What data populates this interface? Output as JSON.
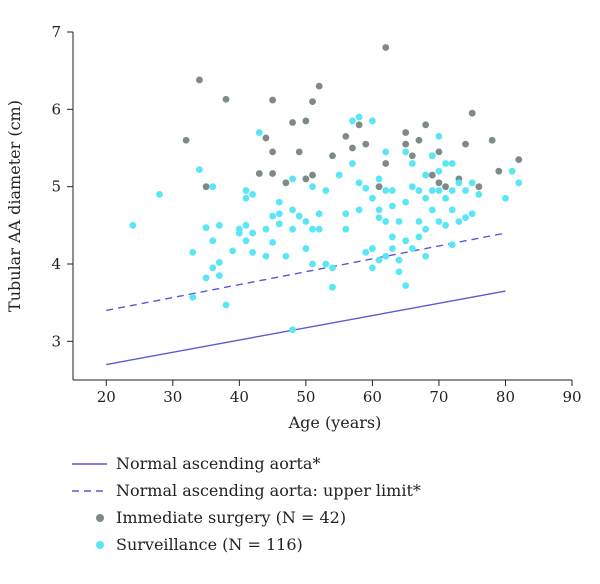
{
  "chart_data": {
    "type": "scatter",
    "xlabel": "Age (years)",
    "ylabel": "Tubular AA diameter (cm)",
    "xlim": [
      15,
      90
    ],
    "ylim": [
      2.5,
      7
    ],
    "x_ticks": [
      20,
      30,
      40,
      50,
      60,
      70,
      80,
      90
    ],
    "y_ticks": [
      3,
      4,
      5,
      6,
      7
    ],
    "grid": false,
    "legend_placement": "bottom",
    "series": [
      {
        "name": "Normal ascending aorta*",
        "kind": "line",
        "style": "solid",
        "color": "#5a5ad2",
        "points": [
          [
            20,
            2.7
          ],
          [
            80,
            3.65
          ]
        ]
      },
      {
        "name": "Normal ascending aorta: upper limit*",
        "kind": "line",
        "style": "dashed",
        "color": "#5a5ad2",
        "points": [
          [
            20,
            3.4
          ],
          [
            80,
            4.4
          ]
        ]
      },
      {
        "name": "Immediate surgery (N = 42)",
        "kind": "scatter",
        "color": "#7d8a87",
        "points": [
          [
            32,
            5.6
          ],
          [
            34,
            6.38
          ],
          [
            35,
            5.0
          ],
          [
            38,
            6.13
          ],
          [
            43,
            5.17
          ],
          [
            44,
            5.63
          ],
          [
            45,
            5.45
          ],
          [
            45,
            6.12
          ],
          [
            45,
            5.17
          ],
          [
            47,
            5.05
          ],
          [
            48,
            5.83
          ],
          [
            49,
            5.45
          ],
          [
            50,
            5.1
          ],
          [
            50,
            5.85
          ],
          [
            51,
            6.1
          ],
          [
            51,
            5.15
          ],
          [
            52,
            6.3
          ],
          [
            54,
            5.4
          ],
          [
            56,
            5.65
          ],
          [
            57,
            5.5
          ],
          [
            58,
            5.8
          ],
          [
            59,
            5.55
          ],
          [
            61,
            5.0
          ],
          [
            62,
            6.8
          ],
          [
            62,
            5.3
          ],
          [
            65,
            5.55
          ],
          [
            65,
            5.7
          ],
          [
            66,
            5.4
          ],
          [
            67,
            5.6
          ],
          [
            68,
            5.8
          ],
          [
            69,
            5.4
          ],
          [
            69,
            5.15
          ],
          [
            70,
            5.45
          ],
          [
            70,
            5.05
          ],
          [
            71,
            5.0
          ],
          [
            73,
            5.1
          ],
          [
            74,
            5.55
          ],
          [
            75,
            5.95
          ],
          [
            76,
            5.0
          ],
          [
            78,
            5.6
          ],
          [
            79,
            5.2
          ],
          [
            82,
            5.35
          ]
        ]
      },
      {
        "name": "Surveillance (N = 116)",
        "kind": "scatter",
        "color": "#5ae6f5",
        "points": [
          [
            24,
            4.5
          ],
          [
            28,
            4.9
          ],
          [
            33,
            3.57
          ],
          [
            33,
            4.15
          ],
          [
            34,
            5.22
          ],
          [
            35,
            4.47
          ],
          [
            35,
            3.82
          ],
          [
            36,
            5.0
          ],
          [
            36,
            4.3
          ],
          [
            36,
            3.95
          ],
          [
            37,
            4.5
          ],
          [
            37,
            3.85
          ],
          [
            37,
            4.02
          ],
          [
            38,
            3.47
          ],
          [
            39,
            4.17
          ],
          [
            40,
            4.45
          ],
          [
            40,
            4.4
          ],
          [
            41,
            4.85
          ],
          [
            41,
            4.5
          ],
          [
            41,
            4.95
          ],
          [
            41,
            4.3
          ],
          [
            42,
            4.4
          ],
          [
            42,
            4.9
          ],
          [
            42,
            4.15
          ],
          [
            43,
            5.7
          ],
          [
            44,
            4.45
          ],
          [
            44,
            4.1
          ],
          [
            45,
            4.28
          ],
          [
            45,
            4.62
          ],
          [
            46,
            4.8
          ],
          [
            46,
            4.52
          ],
          [
            46,
            4.65
          ],
          [
            47,
            4.1
          ],
          [
            48,
            5.1
          ],
          [
            48,
            4.7
          ],
          [
            48,
            4.45
          ],
          [
            48,
            3.15
          ],
          [
            49,
            4.62
          ],
          [
            50,
            4.55
          ],
          [
            50,
            4.2
          ],
          [
            51,
            4.45
          ],
          [
            51,
            4.0
          ],
          [
            51,
            5.0
          ],
          [
            52,
            4.65
          ],
          [
            52,
            4.45
          ],
          [
            53,
            4.95
          ],
          [
            53,
            4.0
          ],
          [
            54,
            3.95
          ],
          [
            54,
            3.7
          ],
          [
            55,
            5.15
          ],
          [
            56,
            4.65
          ],
          [
            56,
            4.45
          ],
          [
            57,
            5.85
          ],
          [
            57,
            5.3
          ],
          [
            58,
            5.9
          ],
          [
            58,
            5.05
          ],
          [
            58,
            4.7
          ],
          [
            59,
            4.98
          ],
          [
            59,
            4.15
          ],
          [
            60,
            5.85
          ],
          [
            60,
            4.85
          ],
          [
            60,
            4.2
          ],
          [
            60,
            3.95
          ],
          [
            61,
            5.1
          ],
          [
            61,
            4.7
          ],
          [
            61,
            4.6
          ],
          [
            61,
            4.05
          ],
          [
            62,
            5.45
          ],
          [
            62,
            4.95
          ],
          [
            62,
            4.55
          ],
          [
            62,
            4.1
          ],
          [
            63,
            4.95
          ],
          [
            63,
            4.75
          ],
          [
            63,
            4.35
          ],
          [
            63,
            4.2
          ],
          [
            64,
            4.55
          ],
          [
            64,
            4.05
          ],
          [
            64,
            3.9
          ],
          [
            65,
            5.45
          ],
          [
            65,
            4.8
          ],
          [
            65,
            4.3
          ],
          [
            65,
            3.72
          ],
          [
            66,
            5.3
          ],
          [
            66,
            5.0
          ],
          [
            66,
            4.2
          ],
          [
            67,
            4.95
          ],
          [
            67,
            4.55
          ],
          [
            67,
            4.35
          ],
          [
            68,
            5.15
          ],
          [
            68,
            4.85
          ],
          [
            68,
            4.45
          ],
          [
            68,
            4.1
          ],
          [
            69,
            5.4
          ],
          [
            69,
            4.95
          ],
          [
            69,
            4.7
          ],
          [
            70,
            5.65
          ],
          [
            70,
            5.2
          ],
          [
            70,
            4.95
          ],
          [
            70,
            4.55
          ],
          [
            71,
            5.3
          ],
          [
            71,
            4.85
          ],
          [
            71,
            4.5
          ],
          [
            72,
            5.3
          ],
          [
            72,
            4.95
          ],
          [
            72,
            4.7
          ],
          [
            72,
            4.25
          ],
          [
            73,
            5.05
          ],
          [
            73,
            4.55
          ],
          [
            74,
            4.95
          ],
          [
            74,
            4.6
          ],
          [
            75,
            5.05
          ],
          [
            75,
            4.65
          ],
          [
            76,
            4.9
          ],
          [
            80,
            4.85
          ],
          [
            81,
            5.2
          ],
          [
            82,
            5.05
          ]
        ]
      }
    ]
  }
}
